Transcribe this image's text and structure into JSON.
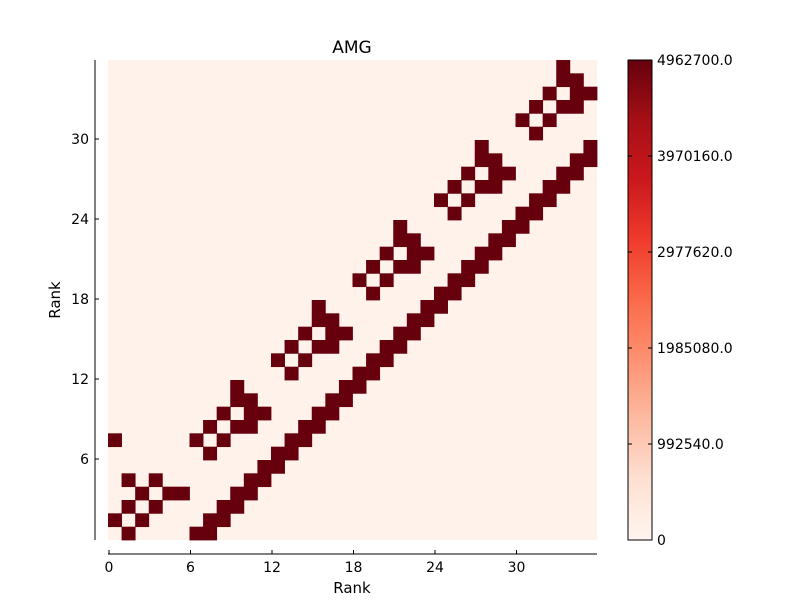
{
  "chart_data": {
    "type": "heatmap",
    "title": "AMG",
    "xlabel": "Rank",
    "ylabel": "Rank",
    "x_ticks": [
      0,
      6,
      12,
      18,
      24,
      30
    ],
    "y_ticks": [
      6,
      12,
      18,
      24,
      30
    ],
    "grid_size": 36,
    "colormap": "Reds",
    "color_range": [
      0,
      4962700.0
    ],
    "colorbar_ticks": [
      "0",
      "992540.0",
      "1985080.0",
      "2977620.0",
      "3970160.0",
      "4962700.0"
    ],
    "high_value": 4962700.0,
    "low_value": 0,
    "background_value": 100000,
    "high_cells": [
      [
        1,
        0
      ],
      [
        0,
        1
      ],
      [
        2,
        1
      ],
      [
        1,
        2
      ],
      [
        3,
        2
      ],
      [
        2,
        3
      ],
      [
        4,
        3
      ],
      [
        3,
        4
      ],
      [
        1,
        4
      ],
      [
        5,
        3
      ],
      [
        0,
        7
      ],
      [
        6,
        0
      ],
      [
        7,
        1
      ],
      [
        8,
        2
      ],
      [
        9,
        3
      ],
      [
        10,
        4
      ],
      [
        11,
        5
      ],
      [
        12,
        6
      ],
      [
        13,
        7
      ],
      [
        14,
        8
      ],
      [
        15,
        9
      ],
      [
        16,
        10
      ],
      [
        17,
        11
      ],
      [
        18,
        12
      ],
      [
        19,
        13
      ],
      [
        20,
        14
      ],
      [
        21,
        15
      ],
      [
        22,
        16
      ],
      [
        23,
        17
      ],
      [
        24,
        18
      ],
      [
        25,
        19
      ],
      [
        26,
        20
      ],
      [
        27,
        21
      ],
      [
        28,
        22
      ],
      [
        29,
        23
      ],
      [
        30,
        24
      ],
      [
        31,
        25
      ],
      [
        32,
        26
      ],
      [
        33,
        27
      ],
      [
        34,
        28
      ],
      [
        35,
        29
      ],
      [
        7,
        0
      ],
      [
        8,
        1
      ],
      [
        9,
        2
      ],
      [
        10,
        3
      ],
      [
        11,
        4
      ],
      [
        12,
        5
      ],
      [
        13,
        6
      ],
      [
        14,
        7
      ],
      [
        15,
        8
      ],
      [
        16,
        9
      ],
      [
        17,
        10
      ],
      [
        18,
        11
      ],
      [
        19,
        12
      ],
      [
        20,
        13
      ],
      [
        21,
        14
      ],
      [
        22,
        15
      ],
      [
        23,
        16
      ],
      [
        24,
        17
      ],
      [
        25,
        18
      ],
      [
        26,
        19
      ],
      [
        27,
        20
      ],
      [
        28,
        21
      ],
      [
        29,
        22
      ],
      [
        30,
        23
      ],
      [
        31,
        24
      ],
      [
        32,
        25
      ],
      [
        33,
        26
      ],
      [
        34,
        27
      ],
      [
        35,
        28
      ],
      [
        7,
        6
      ],
      [
        6,
        7
      ],
      [
        8,
        7
      ],
      [
        7,
        8
      ],
      [
        9,
        8
      ],
      [
        8,
        9
      ],
      [
        10,
        9
      ],
      [
        9,
        10
      ],
      [
        11,
        9
      ],
      [
        10,
        8
      ],
      [
        10,
        10
      ],
      [
        9,
        11
      ],
      [
        13,
        12
      ],
      [
        12,
        13
      ],
      [
        14,
        13
      ],
      [
        13,
        14
      ],
      [
        15,
        14
      ],
      [
        14,
        15
      ],
      [
        16,
        15
      ],
      [
        15,
        16
      ],
      [
        17,
        15
      ],
      [
        16,
        16
      ],
      [
        16,
        14
      ],
      [
        15,
        17
      ],
      [
        19,
        18
      ],
      [
        18,
        19
      ],
      [
        20,
        19
      ],
      [
        19,
        20
      ],
      [
        21,
        20
      ],
      [
        20,
        21
      ],
      [
        22,
        21
      ],
      [
        21,
        22
      ],
      [
        23,
        21
      ],
      [
        22,
        22
      ],
      [
        22,
        20
      ],
      [
        21,
        23
      ],
      [
        25,
        24
      ],
      [
        24,
        25
      ],
      [
        26,
        25
      ],
      [
        25,
        26
      ],
      [
        27,
        26
      ],
      [
        26,
        27
      ],
      [
        28,
        27
      ],
      [
        27,
        28
      ],
      [
        29,
        27
      ],
      [
        28,
        28
      ],
      [
        28,
        26
      ],
      [
        27,
        29
      ],
      [
        31,
        30
      ],
      [
        30,
        31
      ],
      [
        32,
        31
      ],
      [
        31,
        32
      ],
      [
        33,
        32
      ],
      [
        32,
        33
      ],
      [
        34,
        33
      ],
      [
        33,
        34
      ],
      [
        35,
        33
      ],
      [
        34,
        34
      ],
      [
        34,
        32
      ],
      [
        33,
        35
      ]
    ]
  }
}
